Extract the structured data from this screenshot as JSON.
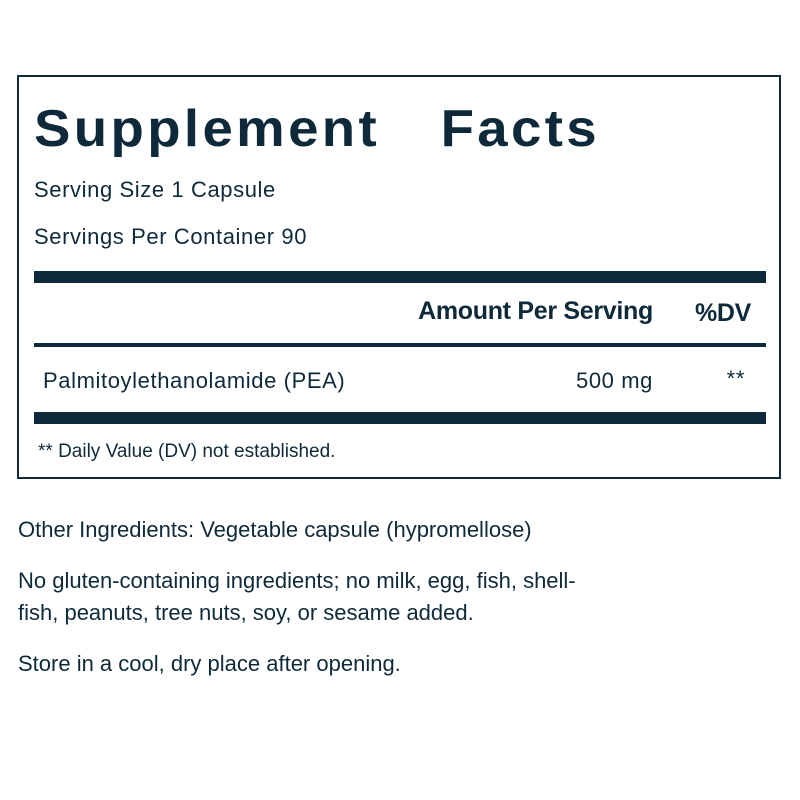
{
  "panel": {
    "title_word1": "Supplement",
    "title_word2": "Facts",
    "serving_size": "Serving Size 1 Capsule",
    "servings_per_container": "Servings Per Container 90",
    "header_amount": "Amount Per Serving",
    "header_dv": "%DV",
    "rows": [
      {
        "name": "Palmitoylethanolamide (PEA)",
        "amount": "500 mg",
        "dv": "**"
      }
    ],
    "footnote": "** Daily Value (DV) not established."
  },
  "other_ingredients": "Other Ingredients: Vegetable capsule (hypromellose)",
  "allergen_line1": "No gluten-containing ingredients; no milk, egg, fish, shell-",
  "allergen_line2": "fish, peanuts, tree nuts, soy, or sesame added.",
  "storage": "Store in a cool, dry place after opening.",
  "colors": {
    "text": "#0e2a3a",
    "background": "#ffffff"
  }
}
